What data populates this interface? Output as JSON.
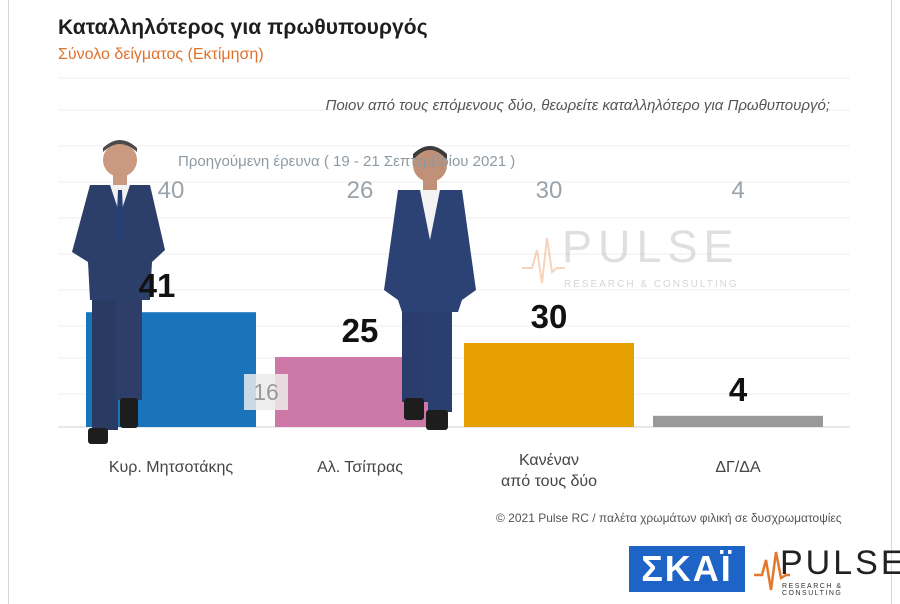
{
  "title": "Καταλληλότερος για πρωθυπουργός",
  "subtitle": "Σύνολο δείγματος   (Εκτίμηση)",
  "question": "Ποιον από τους επόμενους δύο, θεωρείτε καταλληλότερο για Πρωθυπουργό;",
  "previous_caption": "Προηγούμενη έρευνα  ( 19 - 21 Σεπτεμβρίου  2021 )",
  "previous_badge": "16",
  "watermark": {
    "brand": "PULSE",
    "tagline": "RESEARCH & CONSULTING"
  },
  "footer_note": "© 2021 Pulse RC  /  παλέτα χρωμάτων φιλική σε δυσχρωματοψίες",
  "logos": {
    "skai": "ΣΚΑΪ",
    "pulse": "PULSE",
    "pulse_tagline": "RESEARCH & CONSULTING"
  },
  "chart_data": {
    "type": "bar",
    "title": "Καταλληλότερος για πρωθυπουργός",
    "subtitle": "Σύνολο δείγματος   (Εκτίμηση)",
    "categories": [
      "Κυρ. Μητσοτάκης",
      "Αλ. Τσίπρας",
      "Κανέναν από τους δύο",
      "ΔΓ/ΔΑ"
    ],
    "category_lines": [
      [
        "Κυρ. Μητσοτάκης"
      ],
      [
        "Αλ. Τσίπρας"
      ],
      [
        "Κανέναν",
        "από τους δύο"
      ],
      [
        "ΔΓ/ΔΑ"
      ]
    ],
    "values": [
      41,
      25,
      30,
      4
    ],
    "previous_values": [
      40,
      26,
      30,
      4
    ],
    "colors": [
      "#1a74bb",
      "#cc79a7",
      "#e69f00",
      "#999999"
    ],
    "ylim": [
      0,
      50
    ],
    "grid": true
  }
}
